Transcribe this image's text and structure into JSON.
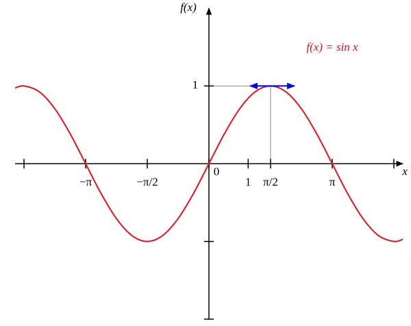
{
  "chart_data": {
    "type": "line",
    "annotation": "f(x) = sin x",
    "ylabel": "f(x)",
    "xlabel": "x",
    "x": [
      -4.94,
      -4.712,
      -4.32,
      -3.927,
      -3.534,
      -3.142,
      -2.749,
      -2.356,
      -1.963,
      -1.571,
      -1.178,
      -0.785,
      -0.393,
      0,
      0.393,
      0.785,
      1.178,
      1.571,
      1.963,
      2.356,
      2.749,
      3.142,
      3.534,
      3.927,
      4.32,
      4.712,
      4.94
    ],
    "series": [
      {
        "name": "f(x) = sin x",
        "color": "#e8101a",
        "values": [
          0.974,
          1,
          0.924,
          0.707,
          0.383,
          0,
          -0.383,
          -0.707,
          -0.924,
          -1,
          -0.924,
          -0.707,
          -0.383,
          0,
          0.383,
          0.707,
          0.924,
          1,
          0.924,
          0.707,
          0.383,
          0,
          -0.383,
          -0.707,
          -0.924,
          -1,
          -0.974
        ]
      }
    ],
    "tangent": {
      "x": [
        1.05,
        2.18
      ],
      "y": 1,
      "color": "#0000ff"
    },
    "guides": {
      "x": 1.571,
      "y": 1,
      "color": "#888888"
    },
    "xlim": [
      -4.94,
      4.94
    ],
    "ylim": [
      -2,
      2
    ],
    "xticks": [
      {
        "value": -4.712,
        "label": null
      },
      {
        "value": -3.142,
        "label": "−π"
      },
      {
        "value": -1.571,
        "label": "−π/2"
      },
      0,
      1,
      {
        "value": 1.571,
        "label": "π/2"
      },
      {
        "value": 3.142,
        "label": "π"
      },
      {
        "value": 4.712,
        "label": null
      }
    ],
    "yticks": [
      {
        "value": -2,
        "label": null
      },
      {
        "value": -1,
        "label": null
      },
      1
    ]
  }
}
